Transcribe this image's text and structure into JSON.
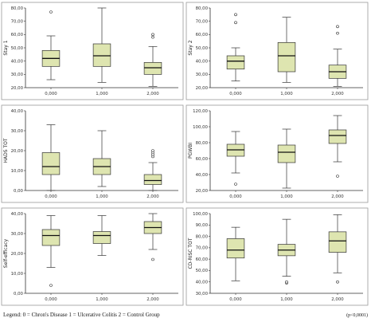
{
  "chart_data": [
    {
      "type": "box",
      "ylabel": "Stay 1",
      "categories": [
        "0,000",
        "1,000",
        "2,000"
      ],
      "ylim": [
        20,
        80
      ],
      "yticks": [
        20,
        30,
        40,
        50,
        60,
        70,
        80
      ],
      "ytick_labels": [
        "20,00",
        "30,00",
        "40,00",
        "50,00",
        "60,00",
        "70,00",
        "80,00"
      ],
      "boxes": [
        {
          "min": 26,
          "q1": 36,
          "median": 42,
          "q3": 48,
          "max": 59,
          "outliers": [
            77
          ]
        },
        {
          "min": 24,
          "q1": 36,
          "median": 44,
          "q3": 53,
          "max": 80,
          "outliers": []
        },
        {
          "min": 21,
          "q1": 30,
          "median": 35,
          "q3": 39,
          "max": 51,
          "outliers": [
            58,
            60
          ]
        }
      ]
    },
    {
      "type": "box",
      "ylabel": "Stay 2",
      "categories": [
        "0,000",
        "1,000",
        "2,000"
      ],
      "ylim": [
        20,
        80
      ],
      "yticks": [
        20,
        30,
        40,
        50,
        60,
        70,
        80
      ],
      "ytick_labels": [
        "20,00",
        "30,00",
        "40,00",
        "50,00",
        "60,00",
        "70,00",
        "80,00"
      ],
      "boxes": [
        {
          "min": 25,
          "q1": 34,
          "median": 40,
          "q3": 44,
          "max": 50,
          "outliers": [
            69,
            75
          ]
        },
        {
          "min": 24,
          "q1": 32,
          "median": 44,
          "q3": 54,
          "max": 73,
          "outliers": []
        },
        {
          "min": 21,
          "q1": 27,
          "median": 32,
          "q3": 37,
          "max": 49,
          "outliers": [
            61,
            66
          ]
        }
      ]
    },
    {
      "type": "box",
      "ylabel": "HADS TOT",
      "categories": [
        "0,000",
        "1,000",
        "2,000"
      ],
      "ylim": [
        0,
        40
      ],
      "yticks": [
        0,
        10,
        20,
        30,
        40
      ],
      "ytick_labels": [
        "0,00",
        "10,00",
        "20,00",
        "30,00",
        "40,00"
      ],
      "boxes": [
        {
          "min": 0,
          "q1": 8,
          "median": 12,
          "q3": 19,
          "max": 33,
          "outliers": []
        },
        {
          "min": 2,
          "q1": 8,
          "median": 12,
          "q3": 16,
          "max": 30,
          "outliers": []
        },
        {
          "min": 0,
          "q1": 3,
          "median": 5,
          "q3": 8,
          "max": 14,
          "outliers": [
            17,
            18,
            19,
            20
          ]
        }
      ]
    },
    {
      "type": "box",
      "ylabel": "PGWBI",
      "categories": [
        "0,000",
        "1,000",
        "2,000"
      ],
      "ylim": [
        20,
        120
      ],
      "yticks": [
        20,
        40,
        60,
        80,
        100,
        120
      ],
      "ytick_labels": [
        "20,00",
        "40,00",
        "60,00",
        "80,00",
        "100,00",
        "120,00"
      ],
      "boxes": [
        {
          "min": 42,
          "q1": 63,
          "median": 71,
          "q3": 78,
          "max": 94,
          "outliers": [
            28
          ]
        },
        {
          "min": 23,
          "q1": 55,
          "median": 68,
          "q3": 77,
          "max": 97,
          "outliers": []
        },
        {
          "min": 56,
          "q1": 79,
          "median": 89,
          "q3": 96,
          "max": 114,
          "outliers": [
            38
          ]
        }
      ]
    },
    {
      "type": "box",
      "ylabel": "Self-efficacy",
      "categories": [
        "0,000",
        "1,000",
        "2,000"
      ],
      "ylim": [
        0,
        40
      ],
      "yticks": [
        0,
        10,
        20,
        30,
        40
      ],
      "ytick_labels": [
        "0,00",
        "10,00",
        "20,00",
        "30,00",
        "40,00"
      ],
      "boxes": [
        {
          "min": 13,
          "q1": 24,
          "median": 29,
          "q3": 32,
          "max": 39,
          "outliers": [
            4
          ]
        },
        {
          "min": 19,
          "q1": 25,
          "median": 29,
          "q3": 31,
          "max": 39,
          "outliers": []
        },
        {
          "min": 22,
          "q1": 30,
          "median": 33,
          "q3": 36,
          "max": 40,
          "outliers": [
            17
          ]
        }
      ]
    },
    {
      "type": "box",
      "ylabel": "CD-RISC TOT",
      "categories": [
        "0,000",
        "1,000",
        "2,000"
      ],
      "ylim": [
        30,
        100
      ],
      "yticks": [
        30,
        40,
        50,
        60,
        70,
        80,
        90,
        100
      ],
      "ytick_labels": [
        "30,00",
        "40,00",
        "50,00",
        "60,00",
        "70,00",
        "80,00",
        "90,00",
        "100,00"
      ],
      "boxes": [
        {
          "min": 41,
          "q1": 61,
          "median": 68,
          "q3": 78,
          "max": 88,
          "outliers": []
        },
        {
          "min": 45,
          "q1": 63,
          "median": 68,
          "q3": 73,
          "max": 95,
          "outliers": [
            39,
            40
          ]
        },
        {
          "min": 48,
          "q1": 66,
          "median": 76,
          "q3": 84,
          "max": 99,
          "outliers": [
            40
          ]
        }
      ]
    }
  ],
  "footer": {
    "legend": "Legend:  0 = Chron's Disease    1 = Ulcerative Colitis    2 = Control Group",
    "note": "(p<0,0001)"
  },
  "colors": {
    "box_fill": "#dee5b0",
    "stroke": "#333333",
    "panel_border": "#999999"
  }
}
